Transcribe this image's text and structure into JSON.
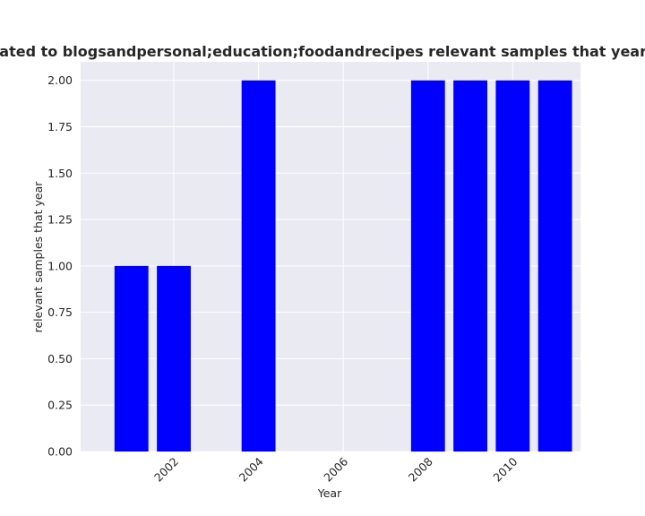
{
  "chart_data": {
    "type": "bar",
    "title": "are related to blogsandpersonal;education;foodandrecipes relevant samples that year in priva",
    "xlabel": "Year",
    "ylabel": "relevant samples that year",
    "x": [
      2001,
      2002,
      2004,
      2008,
      2009,
      2010,
      2011
    ],
    "values": [
      1,
      1,
      2,
      2,
      2,
      2,
      2
    ],
    "xlim": [
      1999.8,
      2011.6
    ],
    "ylim": [
      0,
      2.1
    ],
    "xticks": [
      2002,
      2004,
      2006,
      2008,
      2010
    ],
    "yticks": [
      0,
      0.25,
      0.5,
      0.75,
      1.0,
      1.25,
      1.5,
      1.75,
      2.0
    ],
    "ytick_labels": [
      "0.00",
      "0.25",
      "0.50",
      "0.75",
      "1.00",
      "1.25",
      "1.50",
      "1.75",
      "2.00"
    ],
    "bar_color": "#0000ff",
    "background_color": "#eaeaf2",
    "grid": true,
    "legend": "none"
  }
}
